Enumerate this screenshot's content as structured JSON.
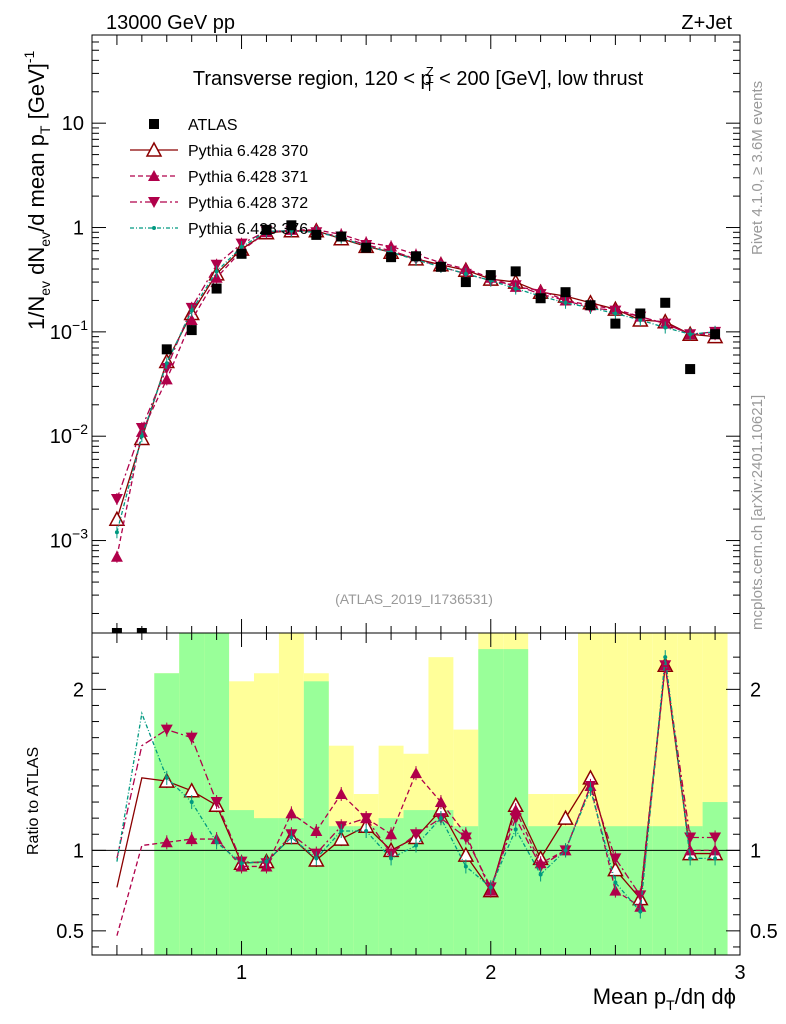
{
  "header": {
    "left": "13000 GeV pp",
    "right": "Z+Jet"
  },
  "side_text": {
    "rivet": "Rivet 4.1.0, ≥ 3.6M events",
    "mcplots": "mcplots.cern.ch [arXiv:2401.10621]"
  },
  "chart_data": {
    "type": "scatter",
    "title": "Transverse region, 120 < p_T^Z < 200 [GeV], low thrust",
    "title_parts": [
      "Transverse region, 120 < p",
      "Z",
      "T",
      " < 200 [GeV], low thrust"
    ],
    "source_label": "(ATLAS_2019_I1736531)",
    "xlabel": "Mean p_T/dη dϕ",
    "xlabel_parts": [
      "Mean p",
      "T",
      "/dη dϕ"
    ],
    "ylabel": "1/N_ev dN_ev/d mean p_T [GeV]^-1",
    "ylabel_parts": [
      "1/N",
      "ev",
      " dN",
      "ev",
      "/d mean p",
      "T",
      " [GeV]",
      "-1"
    ],
    "ratio_ylabel": "Ratio to ATLAS",
    "xlim": [
      0.4,
      3.0
    ],
    "ylim": [
      0.00013,
      70
    ],
    "ratio_ylim": [
      0.35,
      2.35
    ],
    "xticks": [
      1,
      2,
      3
    ],
    "xtick_labels": [
      "1",
      "2",
      "3"
    ],
    "yticks": [
      {
        "value": 10,
        "label": "10"
      },
      {
        "value": 1,
        "label": "1"
      },
      {
        "value": 0.1,
        "label": "10",
        "exp": "−1"
      },
      {
        "value": 0.01,
        "label": "10",
        "exp": "−2"
      },
      {
        "value": 0.001,
        "label": "10",
        "exp": "−3"
      }
    ],
    "ratio_yticks": [
      {
        "value": 0.5,
        "label": "0.5"
      },
      {
        "value": 1,
        "label": "1"
      },
      {
        "value": 2,
        "label": "2"
      }
    ],
    "x": [
      0.5,
      0.6,
      0.7,
      0.8,
      0.9,
      1.0,
      1.1,
      1.2,
      1.3,
      1.4,
      1.5,
      1.6,
      1.7,
      1.8,
      1.9,
      2.0,
      2.1,
      2.2,
      2.3,
      2.4,
      2.5,
      2.6,
      2.7,
      2.8,
      2.9
    ],
    "data": {
      "name": "ATLAS",
      "values": [
        0.00013,
        0.00013,
        0.068,
        0.104,
        0.26,
        0.56,
        0.95,
        1.05,
        0.85,
        0.82,
        0.64,
        0.52,
        0.53,
        0.42,
        0.3,
        0.35,
        0.38,
        0.21,
        0.24,
        0.18,
        0.12,
        0.15,
        0.19,
        0.044,
        0.095
      ]
    },
    "bands": {
      "x_edges": [
        0.65,
        0.75,
        0.85,
        0.95,
        1.05,
        1.15,
        1.25,
        1.35,
        1.45,
        1.55,
        1.65,
        1.75,
        1.85,
        1.95,
        2.05,
        2.15,
        2.25,
        2.35,
        2.45,
        2.55,
        2.65,
        2.75,
        2.85,
        2.95
      ],
      "green": [
        [
          0.35,
          2.1
        ],
        [
          0.35,
          2.35
        ],
        [
          0.35,
          2.35
        ],
        [
          0.35,
          1.25
        ],
        [
          0.35,
          1.2
        ],
        [
          0.35,
          1.2
        ],
        [
          0.35,
          2.05
        ],
        [
          0.35,
          1.15
        ],
        [
          0.35,
          1.15
        ],
        [
          0.35,
          1.2
        ],
        [
          0.35,
          1.25
        ],
        [
          0.35,
          1.25
        ],
        [
          0.35,
          1.15
        ],
        [
          0.35,
          2.25
        ],
        [
          0.35,
          2.25
        ],
        [
          0.35,
          1.15
        ],
        [
          0.35,
          1.15
        ],
        [
          0.35,
          1.15
        ],
        [
          0.35,
          1.15
        ],
        [
          0.35,
          1.15
        ],
        [
          0.35,
          1.15
        ],
        [
          0.35,
          1.15
        ],
        [
          0.35,
          1.3
        ],
        [
          0.35,
          1.15
        ]
      ],
      "yellow": [
        [
          0.35,
          2.1
        ],
        [
          0.35,
          2.35
        ],
        [
          0.35,
          2.35
        ],
        [
          0.35,
          2.05
        ],
        [
          0.35,
          2.1
        ],
        [
          0.35,
          2.35
        ],
        [
          0.35,
          2.1
        ],
        [
          0.35,
          1.65
        ],
        [
          0.35,
          1.35
        ],
        [
          0.35,
          1.65
        ],
        [
          0.35,
          1.6
        ],
        [
          0.35,
          2.2
        ],
        [
          0.35,
          1.75
        ],
        [
          0.35,
          2.35
        ],
        [
          0.35,
          2.35
        ],
        [
          0.35,
          1.35
        ],
        [
          0.35,
          1.35
        ],
        [
          0.35,
          2.35
        ],
        [
          0.35,
          2.35
        ],
        [
          0.35,
          2.35
        ],
        [
          0.35,
          2.35
        ],
        [
          0.35,
          2.35
        ],
        [
          0.35,
          2.35
        ],
        [
          0.35,
          2.35
        ]
      ]
    },
    "series": [
      {
        "name": "Pythia 6.428 370",
        "color": "#8b0000",
        "dash": "",
        "marker": "triangle-open",
        "values": [
          0.0016,
          0.0095,
          0.052,
          0.15,
          0.36,
          0.62,
          0.89,
          0.93,
          0.93,
          0.78,
          0.66,
          0.58,
          0.5,
          0.44,
          0.39,
          0.32,
          0.3,
          0.24,
          0.22,
          0.19,
          0.165,
          0.13,
          0.125,
          0.095,
          0.09
        ],
        "ratio": [
          0.77,
          1.45,
          1.43,
          1.37,
          1.28,
          0.92,
          0.93,
          1.08,
          0.94,
          1.07,
          1.15,
          1.0,
          1.08,
          1.25,
          0.97,
          0.75,
          1.28,
          0.95,
          1.2,
          1.45,
          0.88,
          0.7,
          2.15,
          0.98,
          0.98
        ]
      },
      {
        "name": "Pythia 6.428 371",
        "color": "#b0004a",
        "dash": "5,3",
        "marker": "triangle-up",
        "values": [
          0.0007,
          0.011,
          0.035,
          0.13,
          0.33,
          0.6,
          0.9,
          0.95,
          0.95,
          0.86,
          0.72,
          0.66,
          0.55,
          0.46,
          0.4,
          0.33,
          0.27,
          0.25,
          0.2,
          0.18,
          0.165,
          0.14,
          0.12,
          0.095,
          0.095
        ],
        "ratio": [
          0.47,
          1.03,
          1.05,
          1.07,
          1.07,
          0.9,
          0.9,
          1.23,
          1.12,
          1.35,
          1.2,
          1.1,
          1.48,
          1.3,
          1.1,
          0.75,
          1.25,
          0.92,
          1.0,
          1.4,
          0.75,
          0.65,
          2.15,
          1.0,
          1.0
        ]
      },
      {
        "name": "Pythia 6.428 372",
        "color": "#b0004a",
        "dash": "7,3,2,3",
        "marker": "triangle-down",
        "values": [
          0.0025,
          0.012,
          0.045,
          0.17,
          0.44,
          0.7,
          0.92,
          0.93,
          0.9,
          0.82,
          0.68,
          0.6,
          0.5,
          0.42,
          0.36,
          0.31,
          0.28,
          0.23,
          0.2,
          0.17,
          0.16,
          0.14,
          0.12,
          0.095,
          0.1
        ],
        "ratio": [
          0.95,
          1.65,
          1.75,
          1.7,
          1.3,
          0.93,
          0.92,
          1.1,
          0.98,
          1.15,
          1.2,
          0.98,
          1.1,
          1.2,
          1.08,
          0.77,
          1.2,
          0.9,
          1.0,
          1.4,
          0.95,
          0.72,
          2.15,
          1.08,
          1.08
        ]
      },
      {
        "name": "Pythia 6.428 376",
        "color": "#009980",
        "dash": "4,2,1,2",
        "marker": "dot",
        "values": [
          0.0012,
          0.01,
          0.05,
          0.16,
          0.38,
          0.65,
          0.92,
          0.93,
          0.9,
          0.8,
          0.66,
          0.58,
          0.49,
          0.42,
          0.36,
          0.31,
          0.26,
          0.22,
          0.19,
          0.17,
          0.15,
          0.13,
          0.11,
          0.095,
          0.1
        ],
        "ratio": [
          0.93,
          1.85,
          1.45,
          1.3,
          1.05,
          0.92,
          0.93,
          1.08,
          0.95,
          1.12,
          1.12,
          0.95,
          1.03,
          1.2,
          0.9,
          0.77,
          1.13,
          0.85,
          1.0,
          1.38,
          0.8,
          0.62,
          2.2,
          0.95,
          0.95
        ]
      }
    ]
  }
}
